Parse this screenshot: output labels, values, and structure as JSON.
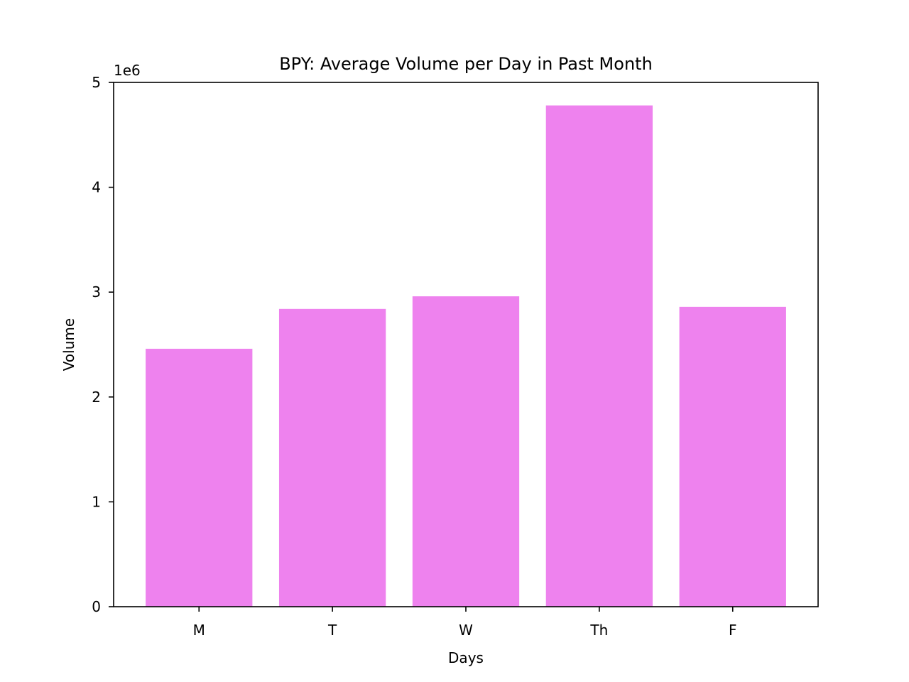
{
  "chart_data": {
    "type": "bar",
    "title": "BPY: Average Volume per Day in Past Month",
    "xlabel": "Days",
    "ylabel": "Volume",
    "categories": [
      "M",
      "T",
      "W",
      "Th",
      "F"
    ],
    "values": [
      2460000,
      2840000,
      2960000,
      4780000,
      2860000
    ],
    "ylim": [
      0,
      5000000
    ],
    "yticks": [
      0,
      1000000,
      2000000,
      3000000,
      4000000,
      5000000
    ],
    "ytick_labels": [
      "0",
      "1",
      "2",
      "3",
      "4",
      "5"
    ],
    "y_offset_label": "1e6",
    "bar_color": "#ee82ee",
    "grid": false,
    "legend": "none"
  }
}
